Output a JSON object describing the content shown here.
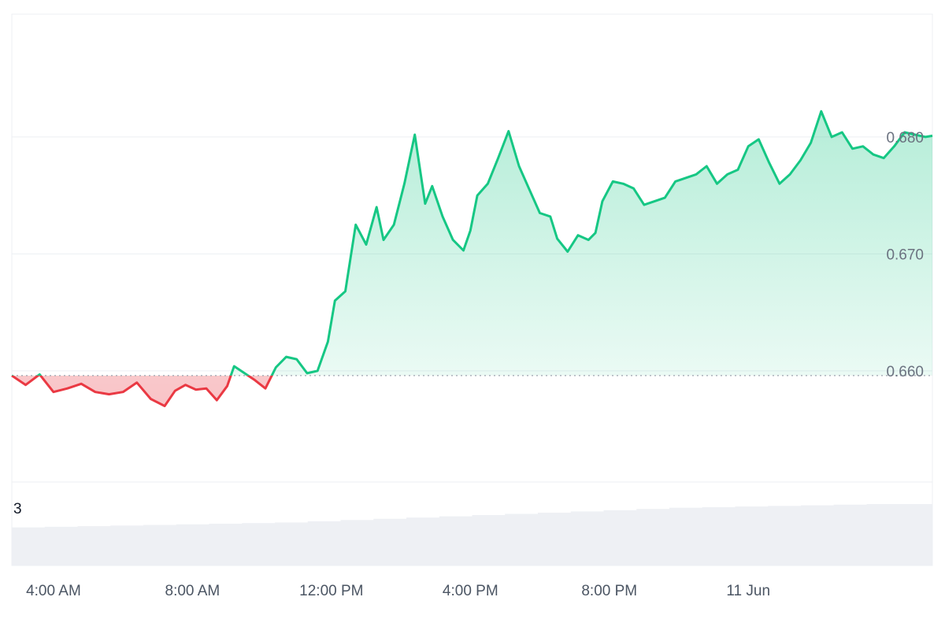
{
  "chart_data": {
    "type": "area",
    "title": "",
    "xlabel": "",
    "ylabel": "",
    "baseline": 0.6596,
    "ylim": [
      0.6505,
      0.6905
    ],
    "y_ticks": [
      {
        "value": 0.66,
        "label": "0.660"
      },
      {
        "value": 0.67,
        "label": "0.670"
      },
      {
        "value": 0.68,
        "label": "0.680"
      }
    ],
    "x_domain_hours": [
      2.8,
      29.3
    ],
    "x_ticks": [
      {
        "hour": 4,
        "label": "4:00 AM"
      },
      {
        "hour": 8,
        "label": "8:00 AM"
      },
      {
        "hour": 12,
        "label": "12:00 PM"
      },
      {
        "hour": 16,
        "label": "4:00 PM"
      },
      {
        "hour": 20,
        "label": "8:00 PM"
      },
      {
        "hour": 24,
        "label": "11 Jun"
      }
    ],
    "grid": true,
    "legend": "none",
    "colors": {
      "up_line": "#16c784",
      "down_line": "#ea3943",
      "up_fill": "#16c784",
      "down_fill": "#ea3943",
      "grid": "#eceff3",
      "baseline": "#9ca3af",
      "volume": "#eef0f4"
    },
    "series": [
      {
        "x": [
          2.8,
          3.2,
          3.6,
          4.0,
          4.4,
          4.8,
          5.2,
          5.6,
          6.0,
          6.4,
          6.8,
          7.2,
          7.5,
          7.8,
          8.1,
          8.4,
          8.7,
          9.0,
          9.2,
          9.5,
          9.8,
          10.1,
          10.4,
          10.7,
          11.0,
          11.3,
          11.6,
          11.9,
          12.1,
          12.4,
          12.7,
          13.0,
          13.3,
          13.5,
          13.8,
          14.1,
          14.4,
          14.7,
          14.9,
          15.2,
          15.5,
          15.8,
          16.0,
          16.2,
          16.5,
          16.8,
          17.1,
          17.4,
          17.7,
          18.0,
          18.3,
          18.5,
          18.8,
          19.1,
          19.4,
          19.6,
          19.8,
          20.1,
          20.4,
          20.7,
          21.0,
          21.3,
          21.6,
          21.9,
          22.2,
          22.5,
          22.8,
          23.1,
          23.4,
          23.7,
          24.0,
          24.3,
          24.6,
          24.9,
          25.2,
          25.5,
          25.8,
          26.1,
          26.4,
          26.7,
          27.0,
          27.3,
          27.6,
          27.9,
          28.2,
          28.5,
          28.8,
          29.1,
          29.3
        ],
        "y": [
          0.6596,
          0.6588,
          0.6597,
          0.6582,
          0.6585,
          0.6589,
          0.6582,
          0.658,
          0.6582,
          0.659,
          0.6576,
          0.657,
          0.6583,
          0.6588,
          0.6584,
          0.6585,
          0.6575,
          0.6587,
          0.6604,
          0.6598,
          0.6592,
          0.6585,
          0.6603,
          0.6612,
          0.661,
          0.6598,
          0.66,
          0.6625,
          0.666,
          0.6668,
          0.6725,
          0.6708,
          0.674,
          0.6712,
          0.6725,
          0.676,
          0.6802,
          0.6743,
          0.6758,
          0.6732,
          0.6712,
          0.6703,
          0.672,
          0.675,
          0.676,
          0.6782,
          0.6805,
          0.6775,
          0.6755,
          0.6735,
          0.6732,
          0.6713,
          0.6702,
          0.6716,
          0.6712,
          0.6718,
          0.6745,
          0.6762,
          0.676,
          0.6756,
          0.6742,
          0.6745,
          0.6748,
          0.6762,
          0.6765,
          0.6768,
          0.6775,
          0.676,
          0.6768,
          0.6772,
          0.6792,
          0.6798,
          0.6778,
          0.676,
          0.6768,
          0.678,
          0.6795,
          0.6822,
          0.68,
          0.6804,
          0.679,
          0.6792,
          0.6785,
          0.6782,
          0.6792,
          0.6804,
          0.6802,
          0.68,
          0.6801
        ]
      }
    ],
    "volume_label": "3",
    "volume_values": [
      0.62,
      0.63,
      0.64,
      0.65,
      0.66,
      0.67,
      0.68,
      0.69,
      0.7,
      0.72,
      0.74,
      0.76,
      0.78,
      0.8,
      0.82,
      0.84,
      0.86,
      0.88,
      0.9,
      0.92,
      0.94,
      0.95,
      0.96,
      0.97,
      0.98,
      0.99,
      1.0,
      1.0
    ]
  }
}
